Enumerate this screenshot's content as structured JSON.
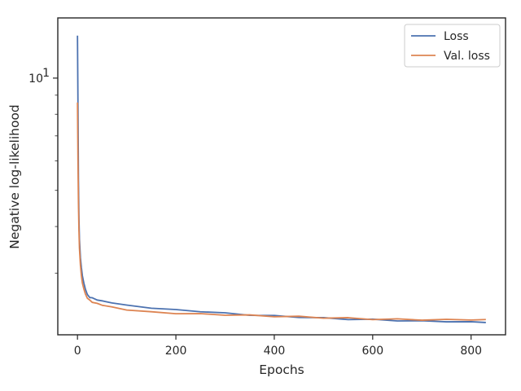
{
  "chart_data": {
    "type": "line",
    "xlabel": "Epochs",
    "ylabel": "Negative log-likelihood",
    "xlim": [
      -40,
      870
    ],
    "ylim": [
      2.05,
      14.5
    ],
    "yscale": "log",
    "xticks": [
      {
        "value": 0,
        "label": "0"
      },
      {
        "value": 200,
        "label": "200"
      },
      {
        "value": 400,
        "label": "400"
      },
      {
        "value": 600,
        "label": "600"
      },
      {
        "value": 800,
        "label": "800"
      }
    ],
    "yticks": [
      {
        "value": 10,
        "base": "10",
        "exp": "1"
      }
    ],
    "grid": false,
    "legend": {
      "position": "top-right",
      "entries": [
        {
          "name": "Loss",
          "color": "#4c72b0"
        },
        {
          "name": "Val. loss",
          "color": "#dd8452"
        }
      ]
    },
    "series": [
      {
        "name": "Loss",
        "color": "#4c72b0",
        "x": [
          0,
          1,
          2,
          3,
          4,
          6,
          8,
          10,
          13,
          16,
          20,
          25,
          30,
          40,
          50,
          70,
          100,
          150,
          200,
          250,
          300,
          350,
          400,
          450,
          500,
          550,
          600,
          650,
          700,
          750,
          800,
          830
        ],
        "y": [
          13.0,
          8.5,
          5.3,
          4.2,
          3.7,
          3.3,
          3.1,
          2.95,
          2.82,
          2.72,
          2.63,
          2.59,
          2.57,
          2.55,
          2.53,
          2.5,
          2.46,
          2.42,
          2.39,
          2.37,
          2.34,
          2.32,
          2.3,
          2.29,
          2.27,
          2.26,
          2.25,
          2.24,
          2.23,
          2.225,
          2.22,
          2.215
        ]
      },
      {
        "name": "Val. loss",
        "color": "#dd8452",
        "x": [
          0,
          1,
          2,
          3,
          4,
          6,
          8,
          10,
          13,
          16,
          20,
          25,
          30,
          40,
          50,
          70,
          100,
          150,
          200,
          250,
          300,
          350,
          400,
          450,
          500,
          550,
          600,
          650,
          700,
          750,
          800,
          830
        ],
        "y": [
          8.6,
          6.0,
          4.6,
          3.9,
          3.5,
          3.15,
          2.95,
          2.82,
          2.72,
          2.64,
          2.57,
          2.53,
          2.51,
          2.48,
          2.46,
          2.43,
          2.39,
          2.36,
          2.34,
          2.33,
          2.32,
          2.31,
          2.3,
          2.29,
          2.28,
          2.27,
          2.26,
          2.255,
          2.25,
          2.25,
          2.25,
          2.25
        ]
      }
    ]
  }
}
